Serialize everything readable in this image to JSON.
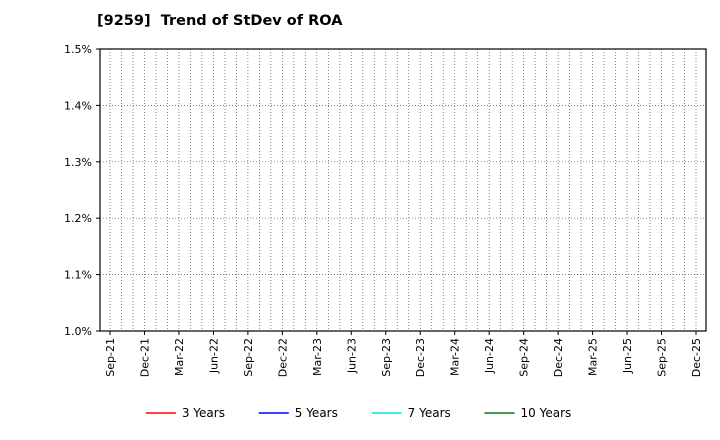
{
  "chart_data": {
    "type": "line",
    "title": "[9259]  Trend of StDev of ROA",
    "x_labels": [
      "Sep-21",
      "Dec-21",
      "Mar-22",
      "Jun-22",
      "Sep-22",
      "Dec-22",
      "Mar-23",
      "Jun-23",
      "Sep-23",
      "Dec-23",
      "Mar-24",
      "Jun-24",
      "Sep-24",
      "Dec-24",
      "Mar-25",
      "Jun-25",
      "Sep-25",
      "Dec-25"
    ],
    "y_ticks": [
      "1.0%",
      "1.1%",
      "1.2%",
      "1.3%",
      "1.4%",
      "1.5%"
    ],
    "ylim": [
      1.0,
      1.5
    ],
    "ylabel": "",
    "xlabel": "",
    "grid": "dotted",
    "legend_position": "bottom",
    "plot_is_empty": true,
    "series": [
      {
        "name": "3 Years",
        "color": "#ff0000",
        "values": []
      },
      {
        "name": "5 Years",
        "color": "#0000ff",
        "values": []
      },
      {
        "name": "7 Years",
        "color": "#00e5ee",
        "values": []
      },
      {
        "name": "10 Years",
        "color": "#007f0e",
        "values": []
      }
    ]
  }
}
